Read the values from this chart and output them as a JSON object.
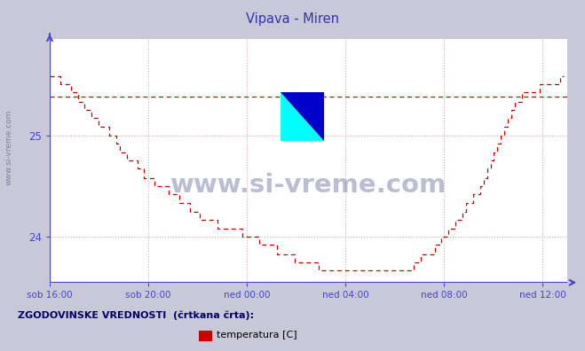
{
  "title": "Vipava - Miren",
  "background_color": "#c8c8d8",
  "plot_bg_color": "#ffffff",
  "line_color": "#cc0000",
  "axis_color": "#4444cc",
  "grid_color": "#cc9999",
  "ylabel_color": "#4444cc",
  "title_color": "#3333aa",
  "watermark_text": "www.si-vreme.com",
  "watermark_color": "#1a2a6b",
  "sidebar_text": "www.si-vreme.com",
  "footer_text": "ZGODOVINSKE VREDNOSTI  (črtkana črta):",
  "legend_label": "temperatura [C]",
  "ylim_min": 23.55,
  "ylim_max": 25.95,
  "yticks": [
    24,
    25
  ],
  "xtick_labels": [
    "sob 16:00",
    "sob 20:00",
    "ned 00:00",
    "ned 04:00",
    "ned 08:00",
    "ned 12:00"
  ],
  "xtick_positions": [
    0,
    240,
    480,
    720,
    960,
    1200
  ],
  "xlim_start": 0,
  "xlim_end": 1260,
  "historical_avg": 25.38,
  "temp_data": [
    25.58,
    25.58,
    25.58,
    25.5,
    25.5,
    25.5,
    25.42,
    25.42,
    25.33,
    25.33,
    25.25,
    25.25,
    25.17,
    25.17,
    25.08,
    25.08,
    25.08,
    25.0,
    25.0,
    24.92,
    24.83,
    24.83,
    24.75,
    24.75,
    24.75,
    24.67,
    24.67,
    24.58,
    24.58,
    24.58,
    24.5,
    24.5,
    24.5,
    24.5,
    24.42,
    24.42,
    24.42,
    24.33,
    24.33,
    24.33,
    24.25,
    24.25,
    24.25,
    24.17,
    24.17,
    24.17,
    24.17,
    24.17,
    24.08,
    24.08,
    24.08,
    24.08,
    24.08,
    24.08,
    24.08,
    24.0,
    24.0,
    24.0,
    24.0,
    24.0,
    23.92,
    23.92,
    23.92,
    23.92,
    23.92,
    23.83,
    23.83,
    23.83,
    23.83,
    23.83,
    23.75,
    23.75,
    23.75,
    23.75,
    23.75,
    23.75,
    23.75,
    23.67,
    23.67,
    23.67,
    23.67,
    23.67,
    23.67,
    23.67,
    23.67,
    23.67,
    23.67,
    23.67,
    23.67,
    23.67,
    23.67,
    23.67,
    23.67,
    23.67,
    23.67,
    23.67,
    23.67,
    23.67,
    23.67,
    23.67,
    23.67,
    23.67,
    23.67,
    23.67,
    23.75,
    23.75,
    23.83,
    23.83,
    23.83,
    23.83,
    23.92,
    23.92,
    24.0,
    24.0,
    24.08,
    24.08,
    24.17,
    24.17,
    24.25,
    24.33,
    24.33,
    24.42,
    24.42,
    24.5,
    24.58,
    24.67,
    24.75,
    24.83,
    24.92,
    25.0,
    25.08,
    25.17,
    25.25,
    25.33,
    25.33,
    25.42,
    25.42,
    25.42,
    25.42,
    25.42,
    25.5,
    25.5,
    25.5,
    25.5,
    25.5,
    25.5,
    25.58,
    25.58
  ]
}
